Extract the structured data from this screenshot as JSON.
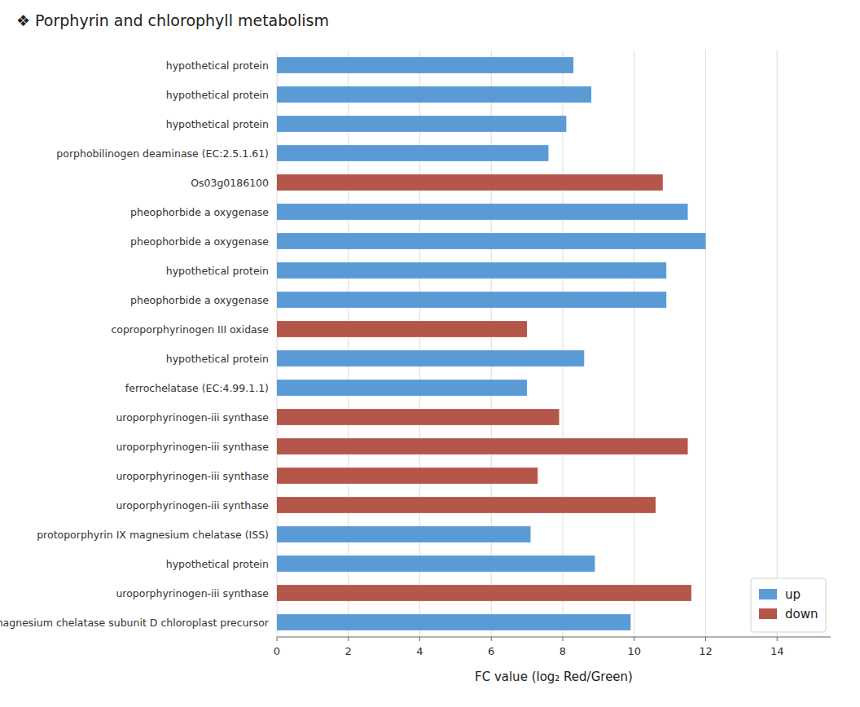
{
  "chart_data": {
    "type": "bar",
    "orientation": "horizontal",
    "title": "❖ Porphyrin and chlorophyll metabolism",
    "xlabel": "FC value (log₂ Red/Green)",
    "xlim": [
      0,
      15.5
    ],
    "xticks": [
      0,
      2,
      4,
      6,
      8,
      10,
      12,
      14
    ],
    "grid": true,
    "legend": "lower right",
    "categories": [
      "hypothetical protein",
      "hypothetical protein",
      "hypothetical protein",
      "porphobilinogen deaminase (EC:2.5.1.61)",
      "Os03g0186100",
      "pheophorbide a oxygenase",
      "pheophorbide a oxygenase",
      "hypothetical protein",
      "pheophorbide a oxygenase",
      "coproporphyrinogen III oxidase",
      "hypothetical protein",
      "ferrochelatase (EC:4.99.1.1)",
      "uroporphyrinogen-iii synthase",
      "uroporphyrinogen-iii synthase",
      "uroporphyrinogen-iii synthase",
      "uroporphyrinogen-iii synthase",
      "protoporphyrin IX magnesium chelatase (ISS)",
      "hypothetical protein",
      "uroporphyrinogen-iii synthase",
      "magnesium chelatase subunit D chloroplast precursor"
    ],
    "series": [
      {
        "name": "up",
        "color": "#5B9BD5",
        "values": [
          8.3,
          8.8,
          8.1,
          7.6,
          null,
          11.5,
          12.0,
          10.9,
          10.9,
          null,
          8.6,
          7.0,
          null,
          null,
          null,
          null,
          7.1,
          8.9,
          null,
          9.9
        ]
      },
      {
        "name": "down",
        "color": "#B5564A",
        "values": [
          null,
          null,
          null,
          null,
          10.8,
          null,
          null,
          null,
          null,
          7.0,
          null,
          null,
          7.9,
          11.5,
          7.3,
          10.6,
          null,
          null,
          11.6,
          null
        ]
      }
    ]
  }
}
